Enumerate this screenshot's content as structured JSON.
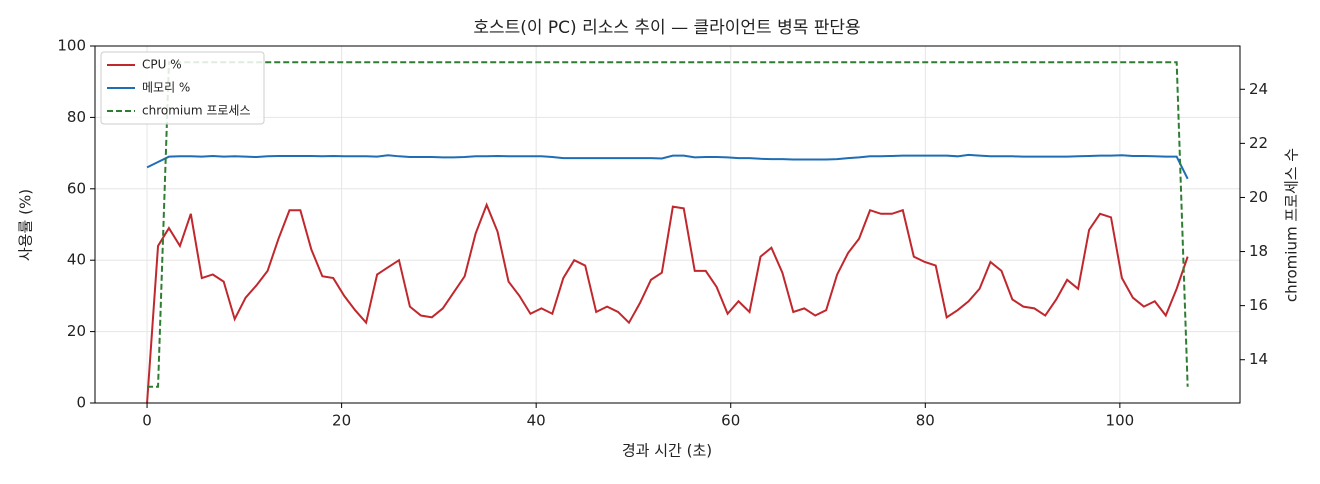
{
  "chart_data": {
    "type": "line",
    "title": "호스트(이 PC) 리소스 추이 — 클라이언트 병목 판단용",
    "x_label": "경과 시간 (초)",
    "y_label": "사용률 (%)",
    "y2_label": "chromium 프로세스 수",
    "x": [
      0,
      1.13,
      2.25,
      3.38,
      4.5,
      5.63,
      6.76,
      7.88,
      9.01,
      10.13,
      11.26,
      12.39,
      13.51,
      14.64,
      15.76,
      16.89,
      18.02,
      19.14,
      20.27,
      21.39,
      22.52,
      23.65,
      24.77,
      25.9,
      27.02,
      28.15,
      29.28,
      30.4,
      31.53,
      32.65,
      33.78,
      34.91,
      36.03,
      37.16,
      38.28,
      39.41,
      40.54,
      41.66,
      42.79,
      43.91,
      45.04,
      46.17,
      47.29,
      48.42,
      49.54,
      50.67,
      51.8,
      52.92,
      54.05,
      55.17,
      56.3,
      57.43,
      58.55,
      59.68,
      60.8,
      61.93,
      63.06,
      64.18,
      65.31,
      66.43,
      67.56,
      68.69,
      69.81,
      70.94,
      72.06,
      73.19,
      74.32,
      75.44,
      76.57,
      77.69,
      78.82,
      79.95,
      81.07,
      82.2,
      83.32,
      84.45,
      85.58,
      86.7,
      87.83,
      88.95,
      90.08,
      91.21,
      92.33,
      93.46,
      94.58,
      95.71,
      96.84,
      97.96,
      99.09,
      100.21,
      101.34,
      102.47,
      103.59,
      104.72,
      105.84,
      106.97
    ],
    "series": [
      {
        "name": "CPU %",
        "color": "#c0282d",
        "linestyle": "solid",
        "axis": "y",
        "values": [
          0,
          44,
          49,
          44,
          53,
          35,
          36,
          34,
          23.5,
          29.5,
          33,
          37,
          46,
          54,
          54,
          43,
          35.5,
          35,
          30,
          26,
          22.5,
          36,
          38,
          40,
          27,
          24.5,
          24,
          26.5,
          31,
          35.5,
          47.5,
          55.5,
          48,
          34,
          30,
          25,
          26.5,
          25,
          35,
          40,
          38.5,
          25.5,
          27,
          25.5,
          22.5,
          28,
          34.5,
          36.5,
          55,
          54.5,
          37,
          37,
          32.5,
          25,
          28.5,
          25.5,
          41,
          43.5,
          36.5,
          25.5,
          26.5,
          24.5,
          26,
          36,
          42,
          46,
          54,
          53,
          53,
          54,
          41,
          39.5,
          38.5,
          24,
          26,
          28.5,
          32,
          39.5,
          37,
          29,
          27,
          26.5,
          24.5,
          29,
          34.5,
          32,
          48.5,
          53,
          52,
          35,
          29.5,
          27,
          28.5,
          24.5,
          32,
          41
        ]
      },
      {
        "name": "메모리 %",
        "color": "#1f6db5",
        "linestyle": "solid",
        "axis": "y",
        "values": [
          66,
          67.5,
          69,
          69.1,
          69.1,
          69,
          69.2,
          69,
          69.1,
          69,
          68.9,
          69.1,
          69.2,
          69.2,
          69.2,
          69.2,
          69.1,
          69.2,
          69.1,
          69.1,
          69.1,
          69,
          69.4,
          69.1,
          68.9,
          68.9,
          68.9,
          68.8,
          68.8,
          68.9,
          69.1,
          69.1,
          69.2,
          69.1,
          69.1,
          69.1,
          69.1,
          68.9,
          68.6,
          68.6,
          68.6,
          68.6,
          68.6,
          68.6,
          68.6,
          68.6,
          68.6,
          68.5,
          69.3,
          69.3,
          68.8,
          68.9,
          68.9,
          68.8,
          68.6,
          68.6,
          68.4,
          68.3,
          68.3,
          68.2,
          68.2,
          68.2,
          68.2,
          68.3,
          68.6,
          68.8,
          69.1,
          69.1,
          69.2,
          69.3,
          69.3,
          69.3,
          69.3,
          69.3,
          69.1,
          69.5,
          69.3,
          69.1,
          69.1,
          69.1,
          69,
          69,
          69,
          69,
          69,
          69.1,
          69.2,
          69.3,
          69.3,
          69.4,
          69.2,
          69.2,
          69.1,
          69,
          69,
          62.8
        ]
      },
      {
        "name": "chromium 프로세스",
        "color": "#2e7d32",
        "linestyle": "dashed",
        "axis": "y2",
        "values": [
          13,
          13,
          25,
          25,
          25,
          25,
          25,
          25,
          25,
          25,
          25,
          25,
          25,
          25,
          25,
          25,
          25,
          25,
          25,
          25,
          25,
          25,
          25,
          25,
          25,
          25,
          25,
          25,
          25,
          25,
          25,
          25,
          25,
          25,
          25,
          25,
          25,
          25,
          25,
          25,
          25,
          25,
          25,
          25,
          25,
          25,
          25,
          25,
          25,
          25,
          25,
          25,
          25,
          25,
          25,
          25,
          25,
          25,
          25,
          25,
          25,
          25,
          25,
          25,
          25,
          25,
          25,
          25,
          25,
          25,
          25,
          25,
          25,
          25,
          25,
          25,
          25,
          25,
          25,
          25,
          25,
          25,
          25,
          25,
          25,
          25,
          25,
          25,
          25,
          25,
          25,
          25,
          25,
          25,
          25,
          13
        ]
      }
    ],
    "xlim": [
      -5.35,
      112.35
    ],
    "xticks": [
      0,
      20,
      40,
      60,
      80,
      100
    ],
    "ylim": [
      0,
      100
    ],
    "yticks": [
      0,
      20,
      40,
      60,
      80,
      100
    ],
    "y2lim": [
      12.4,
      25.6
    ],
    "y2ticks": [
      14,
      16,
      18,
      20,
      22,
      24
    ],
    "grid": true,
    "legend": "upper-left"
  }
}
